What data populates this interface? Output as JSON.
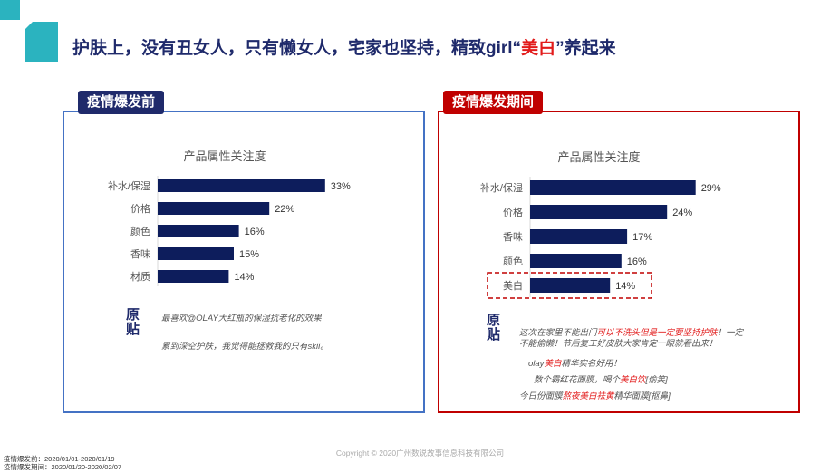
{
  "header": {
    "title_pre": "护肤上，没有丑女人，只有懒女人，宅家也坚持，精致girl“",
    "title_highlight": "美白",
    "title_post": "”养起来"
  },
  "panels": {
    "before": {
      "tag": "疫情爆发前",
      "quote_label": "原\n贴"
    },
    "during": {
      "tag": "疫情爆发期间",
      "quote_label": "原\n贴"
    }
  },
  "quotes_before": [
    {
      "text": "最喜欢@OLAY大红瓶的保湿抗老化的效果"
    },
    {
      "text": "累到深空护肤，我觉得能拯救我的只有skii。"
    }
  ],
  "quotes_during": {
    "q1": {
      "a": "这次在家里不能出门",
      "b": "可以不洗头但是一定要坚持护肤",
      "c": "！一定不能偷懒！节后复工好皮肤大家肯定一眼就看出来！"
    },
    "q2": {
      "a": "olay",
      "b": "美白",
      "c": "精华实名好用！"
    },
    "q3": {
      "a": "数个霸红花面膜，喝个",
      "b": "美白饮",
      "c": "[偷笑]"
    },
    "q4": {
      "a": "今日份面膜",
      "b": "熬夜美白祛黄",
      "c": "精华面膜[抠鼻]"
    }
  },
  "chart_data": [
    {
      "type": "bar",
      "title": "产品属性关注度",
      "categories": [
        "补水/保湿",
        "价格",
        "颜色",
        "香味",
        "材质"
      ],
      "values": [
        33,
        22,
        16,
        15,
        14
      ],
      "value_suffix": "%",
      "xlim": [
        0,
        40
      ],
      "color": "#0d1d5c"
    },
    {
      "type": "bar",
      "title": "产品属性关注度",
      "categories": [
        "补水/保湿",
        "价格",
        "香味",
        "颜色",
        "美白"
      ],
      "values": [
        29,
        24,
        17,
        16,
        14
      ],
      "value_suffix": "%",
      "xlim": [
        0,
        35
      ],
      "highlight_category": "美白",
      "color": "#0d1d5c"
    }
  ],
  "footer": {
    "copyright": "Copyright © 2020广州数说故事信息科技有限公司",
    "date_before": "疫情爆发前：2020/01/01-2020/01/19",
    "date_during": "疫情爆发期间：2020/01/20-2020/02/07"
  },
  "colors": {
    "navy": "#1f2a6b",
    "red": "#c00000",
    "blue_border": "#4472c4",
    "bar": "#0d1d5c",
    "teal": "#2bb3bf"
  }
}
